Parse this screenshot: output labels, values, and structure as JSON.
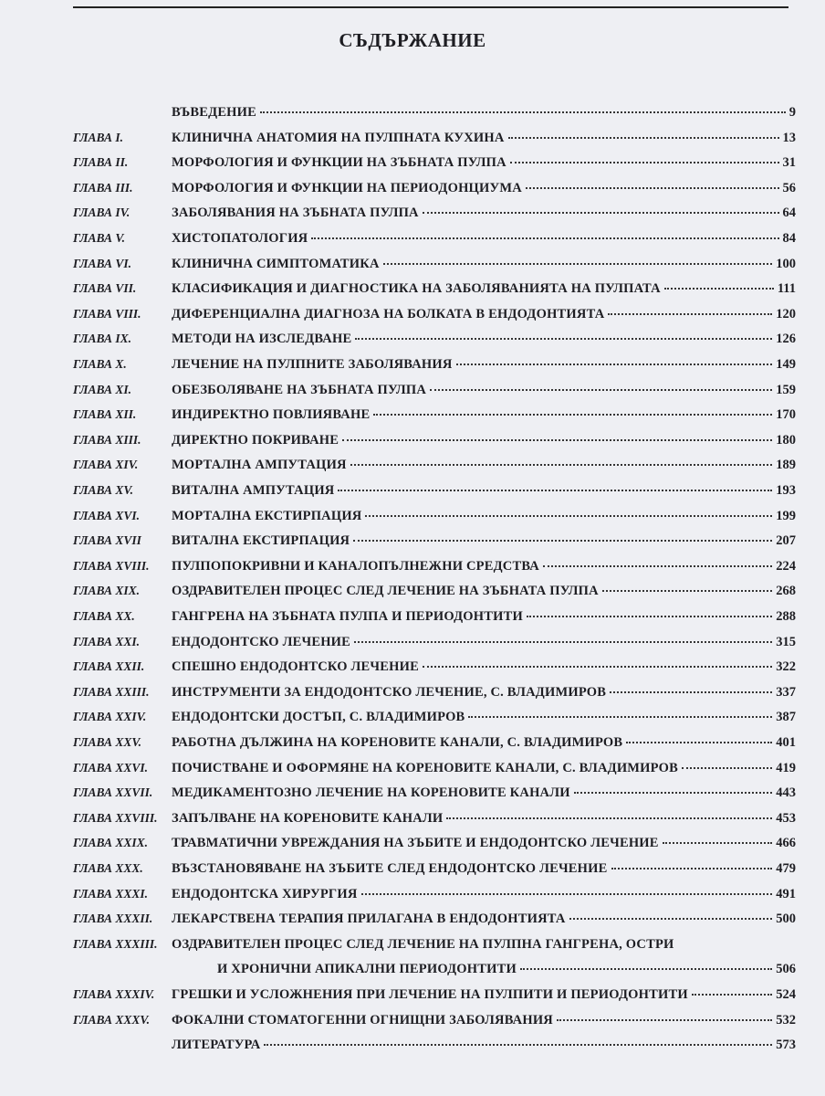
{
  "title": "СЪДЪРЖАНИЕ",
  "entries": [
    {
      "title": "ВЪВЕДЕНИЕ",
      "page": 9
    },
    {
      "chapter": "ГЛАВА I.",
      "title": "КЛИНИЧНА АНАТОМИЯ НА ПУЛПНАТА КУХИНА",
      "page": 13
    },
    {
      "chapter": "ГЛАВА II.",
      "title": "МОРФОЛОГИЯ И ФУНКЦИИ НА ЗЪБНАТА ПУЛПА",
      "page": 31
    },
    {
      "chapter": "ГЛАВА III.",
      "title": "МОРФОЛОГИЯ И ФУНКЦИИ НА ПЕРИОДОНЦИУМА",
      "page": 56
    },
    {
      "chapter": "ГЛАВА IV.",
      "title": "ЗАБОЛЯВАНИЯ НА ЗЪБНАТА ПУЛПА",
      "page": 64
    },
    {
      "chapter": "ГЛАВА V.",
      "title": "ХИСТОПАТОЛОГИЯ",
      "page": 84
    },
    {
      "chapter": "ГЛАВА VI.",
      "title": "КЛИНИЧНА СИМПТОМАТИКА",
      "page": 100
    },
    {
      "chapter": "ГЛАВА VII.",
      "title": "КЛАСИФИКАЦИЯ И ДИАГНОСТИКА НА ЗАБОЛЯВАНИЯТА НА ПУЛПАТА",
      "page": 111
    },
    {
      "chapter": "ГЛАВА VIII.",
      "title": "ДИФЕРЕНЦИАЛНА ДИАГНОЗА НА БОЛКАТА В ЕНДОДОНТИЯТА",
      "page": 120
    },
    {
      "chapter": "ГЛАВА IX.",
      "title": "МЕТОДИ НА ИЗСЛЕДВАНЕ",
      "page": 126
    },
    {
      "chapter": "ГЛАВА X.",
      "title": "ЛЕЧЕНИЕ НА ПУЛПНИТЕ ЗАБОЛЯВАНИЯ",
      "page": 149
    },
    {
      "chapter": "ГЛАВА XI.",
      "title": "ОБЕЗБОЛЯВАНЕ НА ЗЪБНАТА ПУЛПА",
      "page": 159
    },
    {
      "chapter": "ГЛАВА XII.",
      "title": "ИНДИРЕКТНО ПОВЛИЯВАНЕ",
      "page": 170
    },
    {
      "chapter": "ГЛАВА XIII.",
      "title": "ДИРЕКТНО ПОКРИВАНЕ",
      "page": 180
    },
    {
      "chapter": "ГЛАВА XIV.",
      "title": "МОРТАЛНА АМПУТАЦИЯ",
      "page": 189
    },
    {
      "chapter": "ГЛАВА XV.",
      "title": "ВИТАЛНА АМПУТАЦИЯ",
      "page": 193
    },
    {
      "chapter": "ГЛАВА XVI.",
      "title": "МОРТАЛНА ЕКСТИРПАЦИЯ",
      "page": 199
    },
    {
      "chapter": "ГЛАВА XVII",
      "title": "ВИТАЛНА ЕКСТИРПАЦИЯ",
      "page": 207
    },
    {
      "chapter": "ГЛАВА XVIII.",
      "title": "ПУЛПОПОКРИВНИ И КАНАЛОПЪЛНЕЖНИ СРЕДСТВА",
      "page": 224
    },
    {
      "chapter": "ГЛАВА XIX.",
      "title": "ОЗДРАВИТЕЛЕН ПРОЦЕС СЛЕД ЛЕЧЕНИЕ НА ЗЪБНАТА ПУЛПА",
      "page": 268
    },
    {
      "chapter": "ГЛАВА XX.",
      "title": "ГАНГРЕНА НА ЗЪБНАТА ПУЛПА И ПЕРИОДОНТИТИ",
      "page": 288
    },
    {
      "chapter": "ГЛАВА XXI.",
      "title": "ЕНДОДОНТСКО ЛЕЧЕНИЕ",
      "page": 315
    },
    {
      "chapter": "ГЛАВА XXII.",
      "title": "СПЕШНО ЕНДОДОНТСКО ЛЕЧЕНИЕ",
      "page": 322
    },
    {
      "chapter": "ГЛАВА XXIII.",
      "title": "ИНСТРУМЕНТИ ЗА ЕНДОДОНТСКО ЛЕЧЕНИЕ, С. ВЛАДИМИРОВ",
      "page": 337
    },
    {
      "chapter": "ГЛАВА XXIV.",
      "title": "ЕНДОДОНТСКИ ДОСТЪП, С. ВЛАДИМИРОВ",
      "page": 387
    },
    {
      "chapter": "ГЛАВА XXV.",
      "title": "РАБОТНА ДЪЛЖИНА НА КОРЕНОВИТЕ КАНАЛИ, С. ВЛАДИМИРОВ",
      "page": 401
    },
    {
      "chapter": "ГЛАВА XXVI.",
      "title": "ПОЧИСТВАНЕ И ОФОРМЯНЕ НА КОРЕНОВИТЕ КАНАЛИ, С. ВЛАДИМИРОВ",
      "page": 419
    },
    {
      "chapter": "ГЛАВА XXVII.",
      "title": "МЕДИКАМЕНТОЗНО ЛЕЧЕНИЕ НА КОРЕНОВИТЕ КАНАЛИ",
      "page": 443
    },
    {
      "chapter": "ГЛАВА XXVIII.",
      "title": "ЗАПЪЛВАНЕ НА КОРЕНОВИТЕ КАНАЛИ",
      "page": 453
    },
    {
      "chapter": "ГЛАВА XXIX.",
      "title": "ТРАВМАТИЧНИ УВРЕЖДАНИЯ НА ЗЪБИТЕ И ЕНДОДОНТСКО ЛЕЧЕНИЕ",
      "page": 466
    },
    {
      "chapter": "ГЛАВА XXX.",
      "title": "ВЪЗСТАНОВЯВАНЕ НА ЗЪБИТЕ СЛЕД ЕНДОДОНТСКО ЛЕЧЕНИЕ",
      "page": 479
    },
    {
      "chapter": "ГЛАВА XXXI.",
      "title": "ЕНДОДОНТСКА ХИРУРГИЯ",
      "page": 491
    },
    {
      "chapter": "ГЛАВА XXXII.",
      "title": "ЛЕКАРСТВЕНА ТЕРАПИЯ ПРИЛАГАНА В ЕНДОДОНТИЯТА",
      "page": 500
    },
    {
      "chapter": "ГЛАВА XXXIII.",
      "title": "ОЗДРАВИТЕЛЕН ПРОЦЕС СЛЕД ЛЕЧЕНИЕ НА ПУЛПНА ГАНГРЕНА, ОСТРИ",
      "continued": "И ХРОНИЧНИ АПИКАЛНИ ПЕРИОДОНТИТИ",
      "page": 506
    },
    {
      "chapter": "ГЛАВА XXXIV.",
      "title": "ГРЕШКИ И УСЛОЖНЕНИЯ ПРИ ЛЕЧЕНИЕ НА ПУЛПИТИ И ПЕРИОДОНТИТИ",
      "page": 524
    },
    {
      "chapter": "ГЛАВА XXXV.",
      "title": "ФОКАЛНИ СТОМАТОГЕННИ ОГНИЩНИ ЗАБОЛЯВАНИЯ",
      "page": 532
    },
    {
      "title": "ЛИТЕРАТУРА",
      "page": 573
    }
  ]
}
